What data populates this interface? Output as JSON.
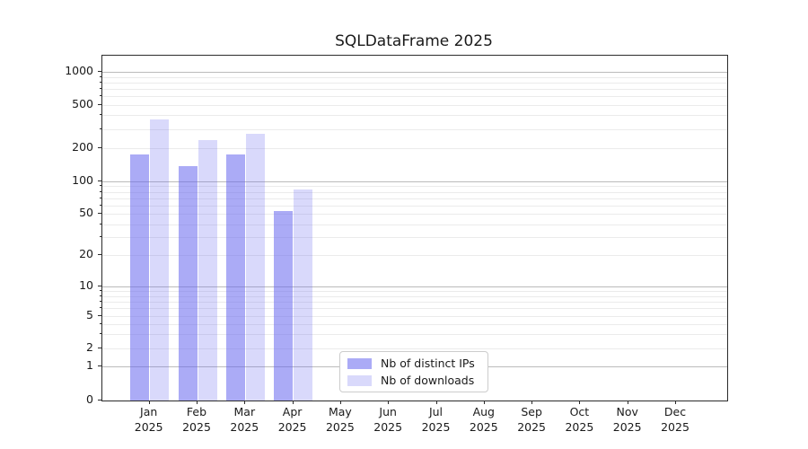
{
  "chart_data": {
    "type": "bar",
    "title": "SQLDataFrame 2025",
    "months": [
      "Jan",
      "Feb",
      "Mar",
      "Apr",
      "May",
      "Jun",
      "Jul",
      "Aug",
      "Sep",
      "Oct",
      "Nov",
      "Dec"
    ],
    "year": "2025",
    "categories": [
      "Jan 2025",
      "Feb 2025",
      "Mar 2025",
      "Apr 2025",
      "May 2025",
      "Jun 2025",
      "Jul 2025",
      "Aug 2025",
      "Sep 2025",
      "Oct 2025",
      "Nov 2025",
      "Dec 2025"
    ],
    "series": [
      {
        "name": "Nb of distinct IPs",
        "key": "distinct-ips",
        "color": "rgba(102,102,238,0.55)",
        "color_hex_on_white": "#aaaaf4",
        "values": [
          174,
          138,
          174,
          53,
          null,
          null,
          null,
          null,
          null,
          null,
          null,
          null
        ]
      },
      {
        "name": "Nb of downloads",
        "key": "downloads",
        "color": "rgba(102,102,238,0.25)",
        "color_hex_on_white": "#d9d9fb",
        "values": [
          368,
          236,
          272,
          84,
          null,
          null,
          null,
          null,
          null,
          null,
          null,
          null
        ]
      }
    ],
    "xlabel": "",
    "ylabel": "",
    "y_ticks": [
      0,
      1,
      2,
      5,
      10,
      20,
      50,
      100,
      200,
      500,
      1000
    ],
    "y_scale": "symlog",
    "ylim": [
      0,
      1400
    ],
    "grid": "both",
    "legend": {
      "position": "inside-bottom-center-left"
    },
    "colors": {
      "major_grid": "#bbbbbb",
      "minor_grid": "#ebebeb",
      "axis": "#2b2b2b",
      "text": "#1a1a1a",
      "legend_border": "#cccccc"
    }
  }
}
